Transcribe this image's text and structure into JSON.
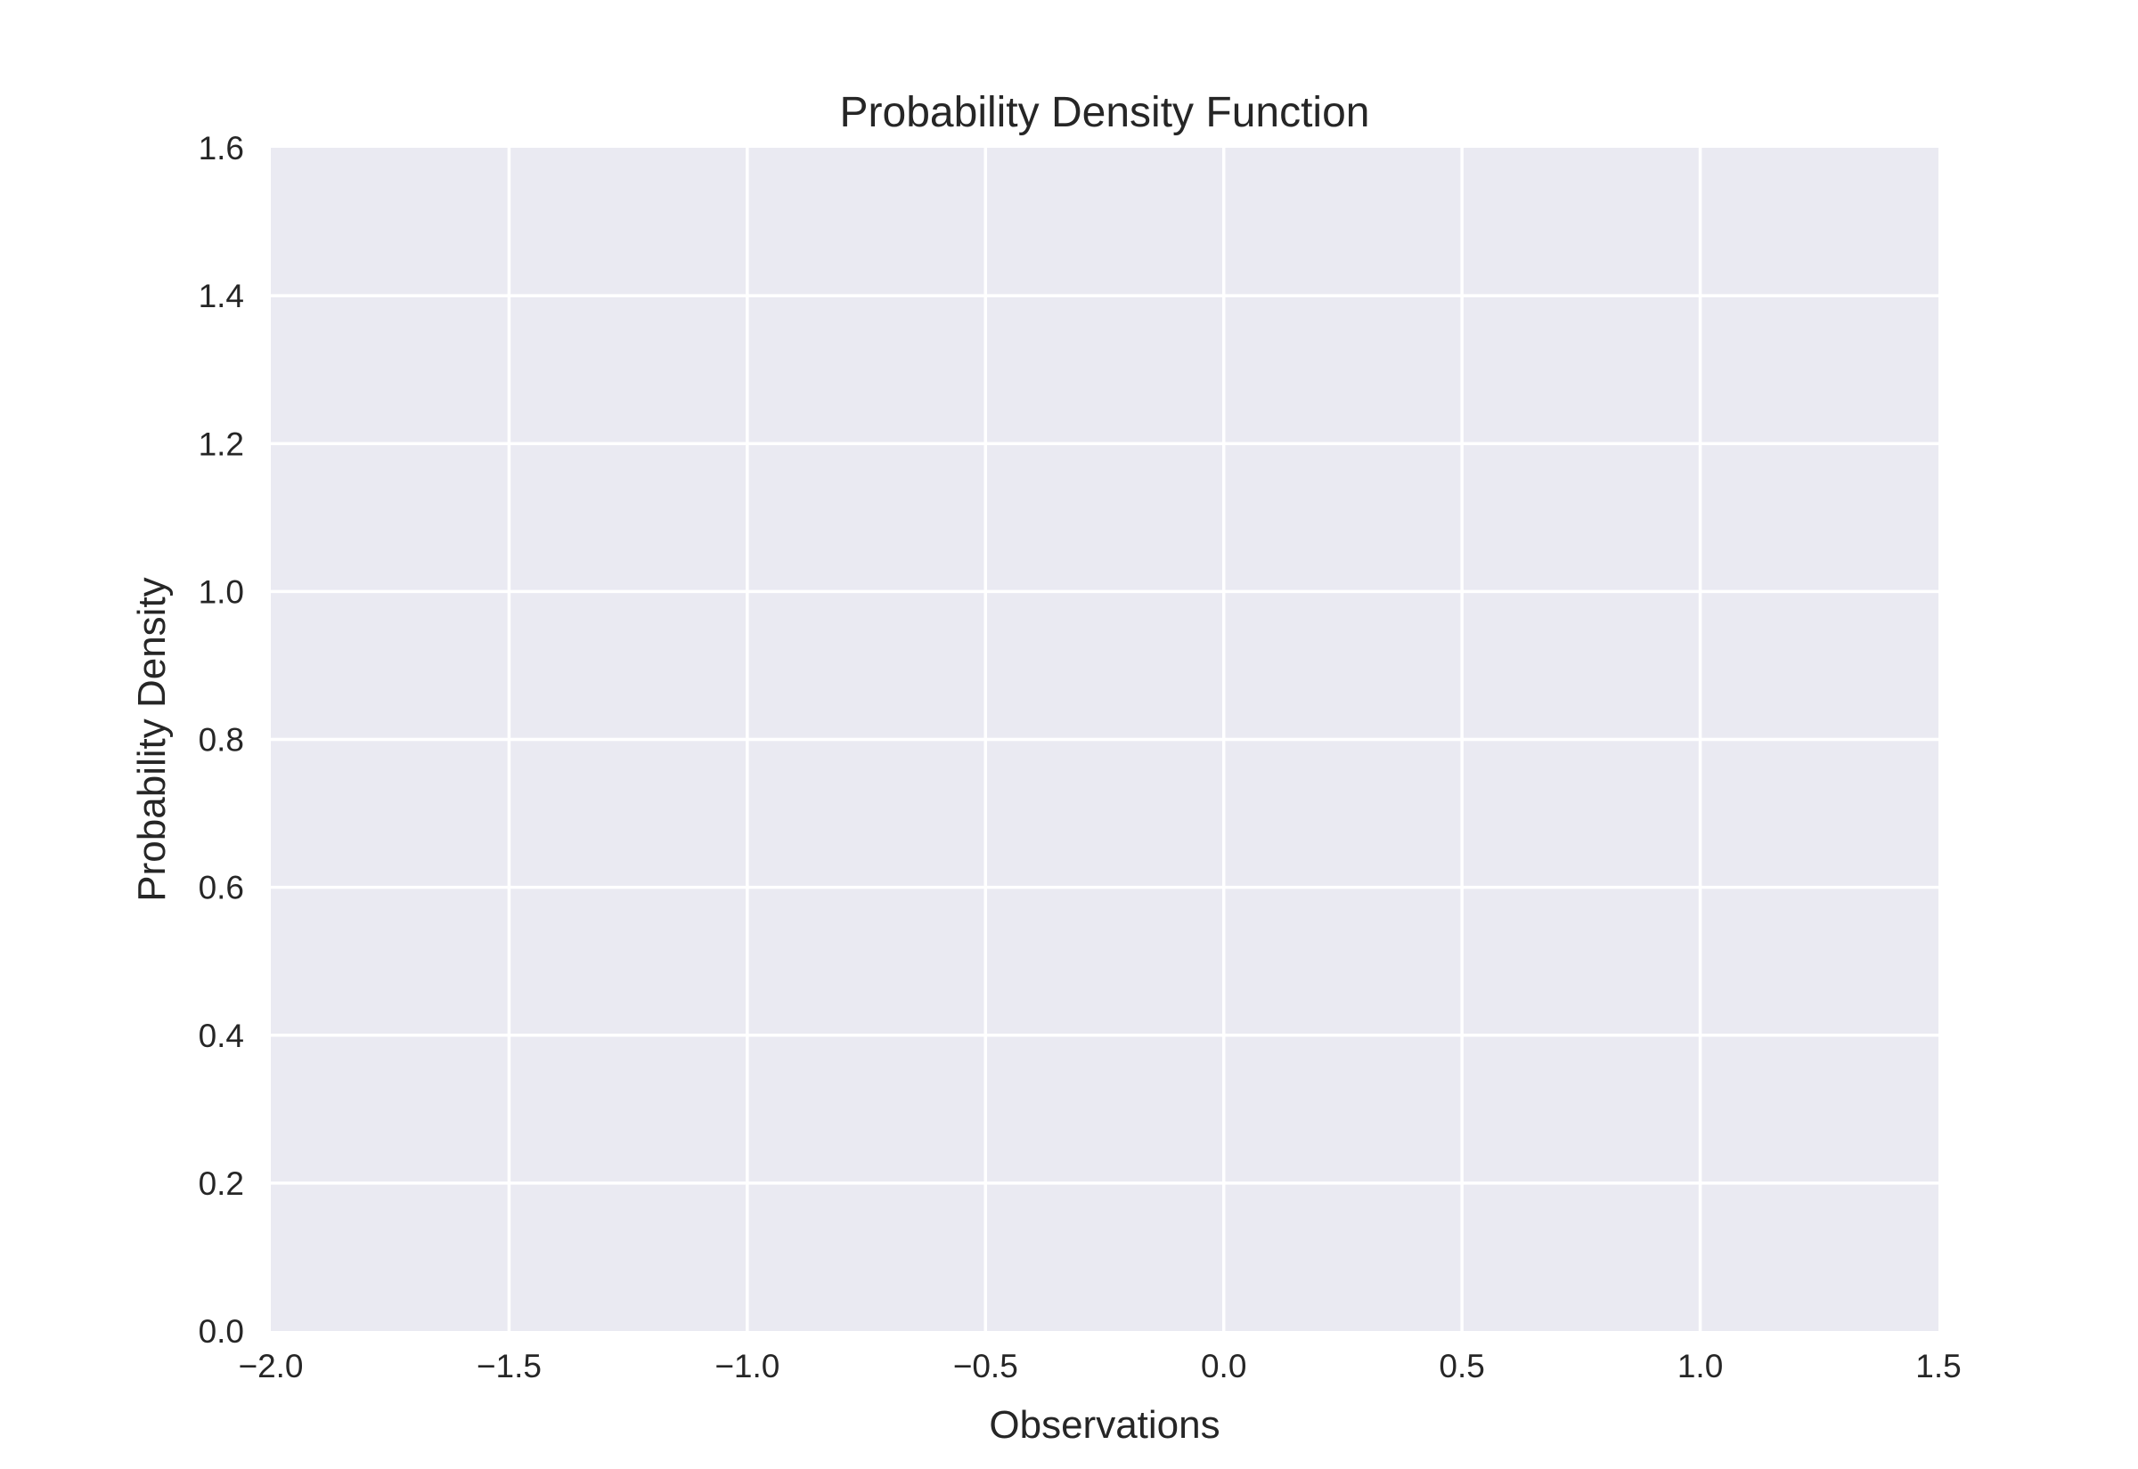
{
  "chart_data": {
    "type": "line",
    "title": "Probability Density Function",
    "xlabel": "Observations",
    "ylabel": "Probability Density",
    "xlim": [
      -2.0,
      1.5
    ],
    "ylim": [
      0.0,
      1.6
    ],
    "x_ticks": [
      -2.0,
      -1.5,
      -1.0,
      -0.5,
      0.0,
      0.5,
      1.0,
      1.5
    ],
    "y_ticks": [
      0.0,
      0.2,
      0.4,
      0.6,
      0.8,
      1.0,
      1.2,
      1.4,
      1.6
    ],
    "x_tick_labels": [
      "−2.0",
      "−1.5",
      "−1.0",
      "−0.5",
      "0.0",
      "0.5",
      "1.0",
      "1.5"
    ],
    "y_tick_labels": [
      "0.0",
      "0.2",
      "0.4",
      "0.6",
      "0.8",
      "1.0",
      "1.2",
      "1.4",
      "1.6"
    ],
    "series": [],
    "grid": true,
    "colors": {
      "plot_background": "#eaeaf2",
      "grid": "#ffffff",
      "text": "#262626"
    }
  }
}
